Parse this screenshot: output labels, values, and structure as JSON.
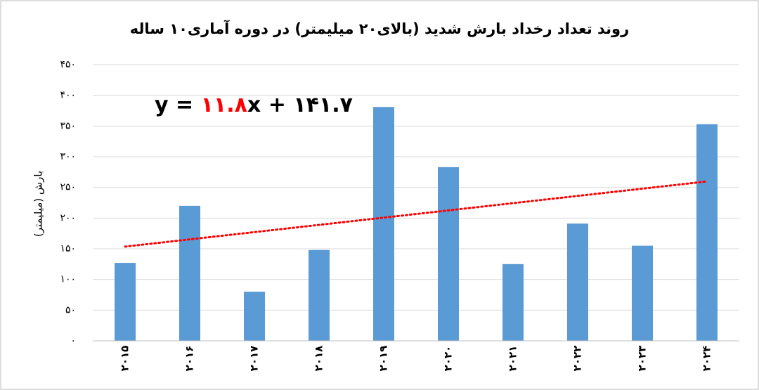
{
  "chart_data": {
    "type": "bar",
    "title": "روند تعداد رخداد بارش شدید (بالای۲۰ میلیمتر) در دوره آماری۱۰ ساله",
    "y_label": "بارش (میلیمتر)",
    "categories": [
      "۲۰۱۵",
      "۲۰۱۶",
      "۲۰۱۷",
      "۲۰۱۸",
      "۲۰۱۹",
      "۲۰۲۰",
      "۲۰۲۱",
      "۲۰۲۲",
      "۲۰۲۳",
      "۲۰۲۴"
    ],
    "values": [
      127,
      220,
      80,
      148,
      381,
      283,
      125,
      191,
      155,
      353
    ],
    "color": "#5b9bd5",
    "ylim": [
      0,
      450
    ],
    "yticks": [
      {
        "value": 0,
        "label": "۰"
      },
      {
        "value": 50,
        "label": "۵۰"
      },
      {
        "value": 100,
        "label": "۱۰۰"
      },
      {
        "value": 150,
        "label": "۱۵۰"
      },
      {
        "value": 200,
        "label": "۲۰۰"
      },
      {
        "value": 250,
        "label": "۲۵۰"
      },
      {
        "value": 300,
        "label": "۳۰۰"
      },
      {
        "value": 350,
        "label": "۳۵۰"
      },
      {
        "value": 400,
        "label": "۴۰۰"
      },
      {
        "value": 450,
        "label": "۴۵۰"
      }
    ],
    "grid": true,
    "trendline": {
      "slope": 11.8,
      "slope_label": "۱۱.۸",
      "intercept": 141.7,
      "intercept_label": "۱۴۱.۷",
      "prefix": "y = ",
      "infix": "x + ",
      "color": "#ff0000"
    }
  }
}
